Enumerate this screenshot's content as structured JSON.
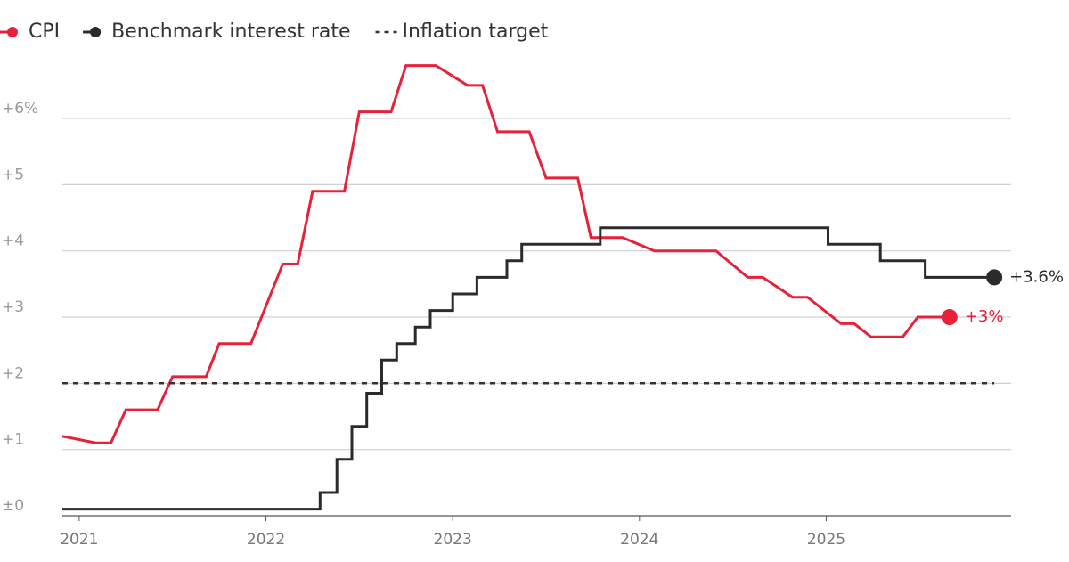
{
  "chart_data": {
    "type": "line",
    "xlim": [
      2020.91,
      2025.99
    ],
    "ylim": [
      0,
      7.1
    ],
    "xticks": [
      2021,
      2022,
      2023,
      2024,
      2025
    ],
    "yticks": [
      {
        "value": 0,
        "label": "±0"
      },
      {
        "value": 1,
        "label": "+1"
      },
      {
        "value": 2,
        "label": "+2"
      },
      {
        "value": 3,
        "label": "+3"
      },
      {
        "value": 4,
        "label": "+4"
      },
      {
        "value": 5,
        "label": "+5"
      },
      {
        "value": 6,
        "label": "+6%"
      }
    ],
    "grid": true,
    "legend": "top-left",
    "series": [
      {
        "name": "CPI",
        "color": "#e8213a",
        "end_label": "+3%",
        "x": [
          2020.91,
          2021.09,
          2021.17,
          2021.25,
          2021.42,
          2021.5,
          2021.68,
          2021.75,
          2021.92,
          2022.09,
          2022.17,
          2022.25,
          2022.42,
          2022.5,
          2022.67,
          2022.75,
          2022.91,
          2023.08,
          2023.16,
          2023.24,
          2023.41,
          2023.5,
          2023.67,
          2023.74,
          2023.91,
          2024.08,
          2024.41,
          2024.58,
          2024.66,
          2024.82,
          2024.9,
          2025.08,
          2025.15,
          2025.24,
          2025.41,
          2025.49,
          2025.66
        ],
        "values": [
          1.2,
          1.1,
          1.1,
          1.6,
          1.6,
          2.1,
          2.1,
          2.6,
          2.6,
          3.8,
          3.8,
          4.9,
          4.9,
          6.1,
          6.1,
          6.8,
          6.8,
          6.5,
          6.5,
          5.8,
          5.8,
          5.1,
          5.1,
          4.2,
          4.2,
          4.0,
          4.0,
          3.6,
          3.6,
          3.3,
          3.3,
          2.9,
          2.9,
          2.7,
          2.7,
          3.0,
          3.0
        ]
      },
      {
        "name": "Benchmark interest rate",
        "color": "#2b2b2b",
        "end_label": "+3.6%",
        "x": [
          2020.91,
          2022.29,
          2022.29,
          2022.38,
          2022.38,
          2022.46,
          2022.46,
          2022.54,
          2022.54,
          2022.62,
          2022.62,
          2022.7,
          2022.7,
          2022.8,
          2022.8,
          2022.88,
          2022.88,
          2023.0,
          2023.0,
          2023.13,
          2023.13,
          2023.29,
          2023.29,
          2023.37,
          2023.37,
          2023.79,
          2023.79,
          2025.01,
          2025.01,
          2025.29,
          2025.29,
          2025.53,
          2025.53,
          2025.9
        ],
        "values": [
          0.1,
          0.1,
          0.35,
          0.35,
          0.85,
          0.85,
          1.35,
          1.35,
          1.85,
          1.85,
          2.35,
          2.35,
          2.6,
          2.6,
          2.85,
          2.85,
          3.1,
          3.1,
          3.35,
          3.35,
          3.6,
          3.6,
          3.85,
          3.85,
          4.1,
          4.1,
          4.35,
          4.35,
          4.1,
          4.1,
          3.85,
          3.85,
          3.6,
          3.6
        ]
      },
      {
        "name": "Inflation target",
        "color": "#333333",
        "dashed": true,
        "x": [
          2020.91,
          2025.9
        ],
        "values": [
          2,
          2
        ]
      }
    ]
  }
}
